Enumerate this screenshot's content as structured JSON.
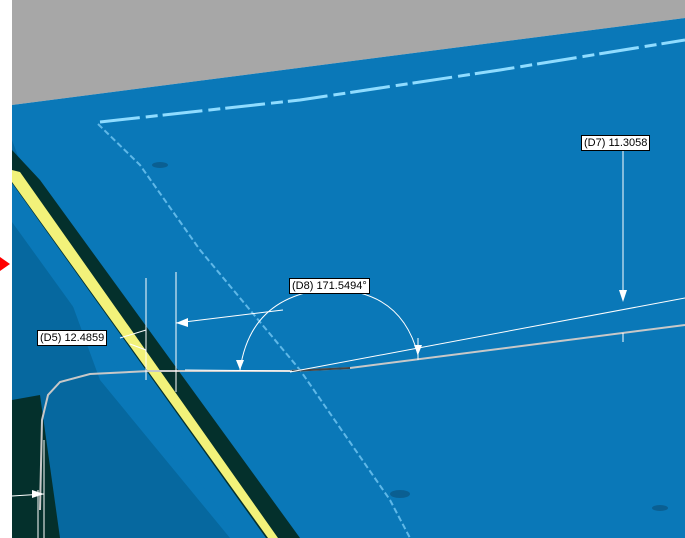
{
  "colors": {
    "background_gray": "#a7a7a7",
    "surface_blue": "#0a78b8",
    "surface_blue_dark": "#06689f",
    "shadow_dark": "#04302c",
    "edge_yellow": "#f2f27a",
    "highlight_cyan": "#8fdcff",
    "dimension_white": "#ffffff",
    "marker_red": "#ff0000"
  },
  "dimensions": [
    {
      "id": "D7",
      "label": "(D7) 11.3058"
    },
    {
      "id": "D8",
      "label": "(D8) 171.5494°"
    },
    {
      "id": "D5",
      "label": "(D5) 12.4859"
    }
  ],
  "icons": {
    "marker": "red-triangle-marker-icon"
  }
}
